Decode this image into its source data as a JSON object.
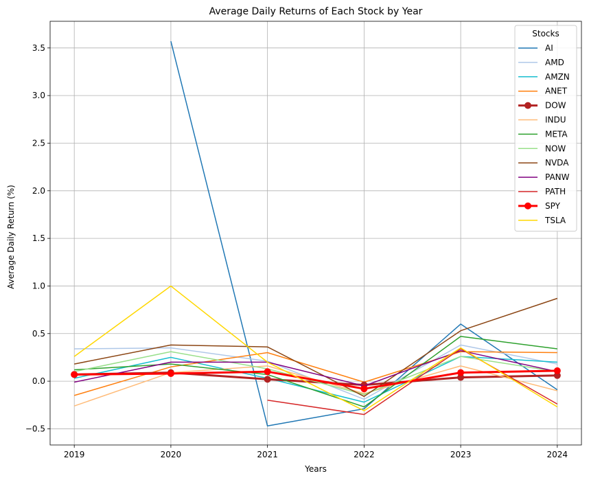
{
  "chart_data": {
    "type": "line",
    "title": "Average Daily Returns of Each Stock by Year",
    "xlabel": "Years",
    "ylabel": "Average Daily Return (%)",
    "x": [
      2019,
      2020,
      2021,
      2022,
      2023,
      2024
    ],
    "x_tick_labels": [
      "2019",
      "2020",
      "2021",
      "2022",
      "2023",
      "2024"
    ],
    "xlim": [
      2018.75,
      2024.25
    ],
    "ylim": [
      -0.67,
      3.78
    ],
    "y_ticks": [
      -0.5,
      0.0,
      0.5,
      1.0,
      1.5,
      2.0,
      2.5,
      3.0,
      3.5
    ],
    "y_tick_labels": [
      "−0.5",
      "0.0",
      "0.5",
      "1.0",
      "1.5",
      "2.0",
      "2.5",
      "3.0",
      "3.5"
    ],
    "grid": true,
    "legend": {
      "title": "Stocks",
      "placement": "top-right"
    },
    "series": [
      {
        "name": "AI",
        "color": "#1f77b4",
        "width": 1.5,
        "marker": false,
        "values": [
          null,
          3.57,
          -0.47,
          -0.29,
          0.6,
          -0.09
        ]
      },
      {
        "name": "AMD",
        "color": "#aec7e8",
        "width": 1.5,
        "marker": false,
        "values": [
          0.34,
          0.35,
          0.21,
          -0.19,
          0.38,
          0.18
        ]
      },
      {
        "name": "AMZN",
        "color": "#17becf",
        "width": 1.5,
        "marker": false,
        "values": [
          0.03,
          0.25,
          0.03,
          -0.22,
          0.26,
          0.2
        ]
      },
      {
        "name": "ANET",
        "color": "#ff7f0e",
        "width": 1.5,
        "marker": false,
        "values": [
          -0.15,
          0.15,
          0.3,
          -0.01,
          0.31,
          0.3
        ]
      },
      {
        "name": "DOW",
        "color": "#b22222",
        "width": 3,
        "marker": true,
        "values": [
          0.07,
          0.09,
          0.02,
          -0.04,
          0.04,
          0.06
        ]
      },
      {
        "name": "INDU",
        "color": "#ffbb78",
        "width": 1.5,
        "marker": false,
        "values": [
          -0.26,
          0.09,
          0.16,
          -0.13,
          0.16,
          -0.1
        ]
      },
      {
        "name": "META",
        "color": "#2ca02c",
        "width": 1.5,
        "marker": false,
        "values": [
          0.12,
          0.18,
          0.07,
          -0.27,
          0.47,
          0.34
        ]
      },
      {
        "name": "NOW",
        "color": "#98df8a",
        "width": 1.5,
        "marker": false,
        "values": [
          0.1,
          0.31,
          0.13,
          -0.14,
          0.26,
          0.1
        ]
      },
      {
        "name": "NVDA",
        "color": "#8b4513",
        "width": 1.5,
        "marker": false,
        "values": [
          0.18,
          0.38,
          0.36,
          -0.16,
          0.53,
          0.87
        ]
      },
      {
        "name": "PANW",
        "color": "#800080",
        "width": 1.5,
        "marker": false,
        "values": [
          -0.01,
          0.2,
          0.2,
          -0.05,
          0.32,
          0.1
        ]
      },
      {
        "name": "PATH",
        "color": "#d62728",
        "width": 1.5,
        "marker": false,
        "values": [
          null,
          null,
          -0.2,
          -0.35,
          0.34,
          -0.24
        ]
      },
      {
        "name": "SPY",
        "color": "#ff0000",
        "width": 3,
        "marker": true,
        "values": [
          0.07,
          0.08,
          0.1,
          -0.08,
          0.09,
          0.11
        ]
      },
      {
        "name": "TSLA",
        "color": "#ffd700",
        "width": 1.5,
        "marker": false,
        "values": [
          0.26,
          1.0,
          0.2,
          -0.31,
          0.35,
          -0.27
        ]
      }
    ]
  }
}
